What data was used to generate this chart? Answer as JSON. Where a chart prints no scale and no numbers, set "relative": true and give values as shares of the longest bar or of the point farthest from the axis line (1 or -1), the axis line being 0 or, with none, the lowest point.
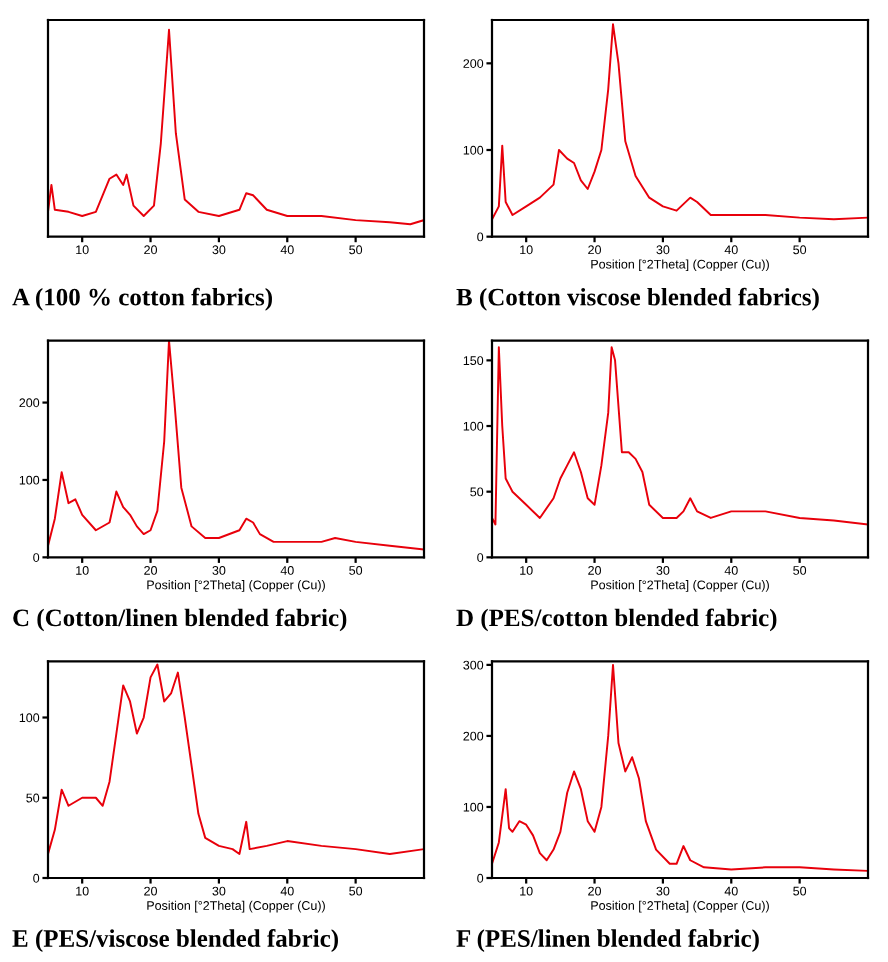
{
  "chart_data": [
    {
      "type": "line",
      "title": "A (100 % cotton fabrics)",
      "relative": true,
      "xlim": [
        5,
        60
      ],
      "xticks": [
        10,
        20,
        30,
        40,
        50
      ],
      "x": [
        5,
        5.5,
        6,
        8,
        10,
        12,
        14,
        15,
        16,
        16.5,
        17.5,
        19,
        20.5,
        21.5,
        22.7,
        23.7,
        25,
        27,
        30,
        33,
        34,
        35,
        37,
        40,
        45,
        50,
        55,
        58,
        60
      ],
      "series": [
        {
          "color": "#e8000b",
          "values": [
            0.12,
            0.25,
            0.13,
            0.12,
            0.1,
            0.12,
            0.28,
            0.3,
            0.25,
            0.3,
            0.15,
            0.1,
            0.15,
            0.45,
            1.0,
            0.5,
            0.18,
            0.12,
            0.1,
            0.13,
            0.21,
            0.2,
            0.13,
            0.1,
            0.1,
            0.08,
            0.07,
            0.06,
            0.08
          ]
        }
      ]
    },
    {
      "type": "line",
      "title": "B (Cotton viscose blended fabrics)",
      "xlabel": "Position [°2Theta] (Copper (Cu))",
      "xlim": [
        5,
        60
      ],
      "xticks": [
        10,
        20,
        30,
        40,
        50
      ],
      "ylim": [
        0,
        250
      ],
      "yticks": [
        0,
        100,
        200
      ],
      "x": [
        5,
        6,
        6.5,
        7,
        8,
        10,
        12,
        14,
        14.8,
        16,
        17,
        18,
        19,
        20,
        21,
        22,
        22.7,
        23.5,
        24.5,
        26,
        28,
        30,
        32,
        34,
        35,
        37,
        40,
        45,
        50,
        55,
        60
      ],
      "series": [
        {
          "color": "#e8000b",
          "values": [
            20,
            35,
            105,
            40,
            25,
            35,
            45,
            60,
            100,
            90,
            85,
            65,
            55,
            75,
            100,
            170,
            245,
            200,
            110,
            70,
            45,
            35,
            30,
            45,
            40,
            25,
            25,
            25,
            22,
            20,
            22
          ]
        }
      ]
    },
    {
      "type": "line",
      "title": "C (Cotton/linen blended fabric)",
      "xlabel": "Position [°2Theta] (Copper (Cu))",
      "xlim": [
        5,
        60
      ],
      "xticks": [
        10,
        20,
        30,
        40,
        50
      ],
      "ylim": [
        0,
        280
      ],
      "yticks": [
        0,
        100,
        200
      ],
      "x": [
        5,
        6,
        7,
        8,
        9,
        10,
        12,
        14,
        15,
        16,
        17,
        18,
        19,
        20,
        21,
        22,
        22.7,
        23.5,
        24.5,
        26,
        28,
        30,
        33,
        34,
        35,
        36,
        38,
        45,
        47,
        50,
        55,
        60
      ],
      "series": [
        {
          "color": "#e8000b",
          "values": [
            15,
            50,
            110,
            70,
            75,
            55,
            35,
            45,
            85,
            65,
            55,
            40,
            30,
            35,
            60,
            150,
            280,
            200,
            90,
            40,
            25,
            25,
            35,
            50,
            45,
            30,
            20,
            20,
            25,
            20,
            15,
            10
          ]
        }
      ]
    },
    {
      "type": "line",
      "title": "D (PES/cotton blended fabric)",
      "xlabel": "Position [°2Theta] (Copper (Cu))",
      "xlim": [
        5,
        60
      ],
      "xticks": [
        10,
        20,
        30,
        40,
        50
      ],
      "ylim": [
        0,
        165
      ],
      "yticks": [
        0,
        50,
        100,
        150
      ],
      "x": [
        5,
        5.5,
        6,
        6.5,
        7,
        8,
        10,
        12,
        14,
        15,
        16,
        17,
        18,
        19,
        20,
        21,
        22,
        22.5,
        23,
        24,
        25,
        26,
        27,
        28,
        30,
        32,
        33,
        34,
        35,
        37,
        40,
        45,
        50,
        55,
        60
      ],
      "series": [
        {
          "color": "#e8000b",
          "values": [
            30,
            25,
            160,
            100,
            60,
            50,
            40,
            30,
            45,
            60,
            70,
            80,
            65,
            45,
            40,
            70,
            110,
            160,
            150,
            80,
            80,
            75,
            65,
            40,
            30,
            30,
            35,
            45,
            35,
            30,
            35,
            35,
            30,
            28,
            25
          ]
        }
      ]
    },
    {
      "type": "line",
      "title": "E (PES/viscose blended fabric)",
      "xlabel": "Position [°2Theta] (Copper (Cu))",
      "xlim": [
        5,
        60
      ],
      "xticks": [
        10,
        20,
        30,
        40,
        50
      ],
      "ylim": [
        0,
        135
      ],
      "yticks": [
        0,
        50,
        100
      ],
      "x": [
        5,
        6,
        7,
        8,
        10,
        12,
        13,
        14,
        15,
        16,
        17,
        18,
        19,
        20,
        21,
        22,
        23,
        24,
        25,
        26,
        27,
        28,
        30,
        32,
        33,
        34,
        34.5,
        37,
        40,
        45,
        50,
        55,
        60
      ],
      "series": [
        {
          "color": "#e8000b",
          "values": [
            15,
            30,
            55,
            45,
            50,
            50,
            45,
            60,
            90,
            120,
            110,
            90,
            100,
            125,
            133,
            110,
            115,
            128,
            100,
            70,
            40,
            25,
            20,
            18,
            15,
            35,
            18,
            20,
            23,
            20,
            18,
            15,
            18
          ]
        }
      ]
    },
    {
      "type": "line",
      "title": "F (PES/linen blended fabric)",
      "xlabel": "Position [°2Theta] (Copper (Cu))",
      "xlim": [
        5,
        60
      ],
      "xticks": [
        10,
        20,
        30,
        40,
        50
      ],
      "ylim": [
        0,
        305
      ],
      "yticks": [
        0,
        100,
        200,
        300
      ],
      "x": [
        5,
        6,
        7,
        7.5,
        8,
        9,
        10,
        11,
        12,
        13,
        14,
        15,
        16,
        17,
        18,
        19,
        20,
        21,
        22,
        22.7,
        23.5,
        24.5,
        25.5,
        26.5,
        27.5,
        29,
        31,
        32,
        33,
        34,
        36,
        40,
        45,
        50,
        55,
        60
      ],
      "series": [
        {
          "color": "#e8000b",
          "values": [
            20,
            50,
            125,
            70,
            65,
            80,
            75,
            60,
            35,
            25,
            40,
            65,
            120,
            150,
            125,
            80,
            65,
            100,
            200,
            300,
            190,
            150,
            170,
            140,
            80,
            40,
            20,
            20,
            45,
            25,
            15,
            12,
            15,
            15,
            12,
            10
          ]
        }
      ]
    }
  ]
}
